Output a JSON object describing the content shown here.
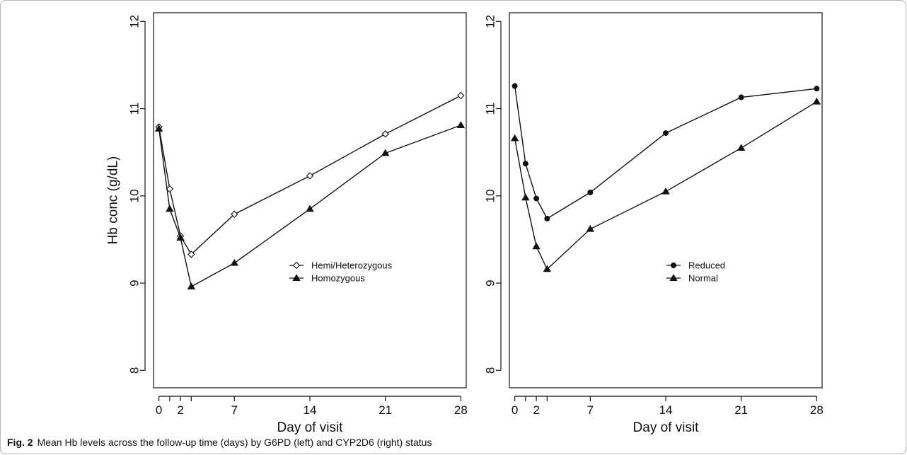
{
  "colors": {
    "stroke": "#111111",
    "background": "#ffffff",
    "frame": "#b4b4b4"
  },
  "caption": {
    "label": "Fig. 2",
    "text": "Mean Hb levels across the follow-up time (days) by G6PD (left) and CYP2D6 (right) status"
  },
  "chart_data": [
    {
      "type": "line",
      "title": "",
      "xlabel": "Day of visit",
      "ylabel": "Hb conc (g/dL)",
      "xlim": [
        -0.5,
        28.5
      ],
      "ylim": [
        7.8,
        12.1
      ],
      "xticks": [
        0,
        2,
        7,
        14,
        21,
        28
      ],
      "xticks_unlabeled": [
        1,
        3
      ],
      "yticks": [
        8,
        9,
        10,
        11,
        12
      ],
      "grid": false,
      "legend_position": "right-middle",
      "series": [
        {
          "name": "Hemi/Heterozygous",
          "marker": "open-diamond",
          "x": [
            0,
            1,
            2,
            3,
            7,
            14,
            21,
            28
          ],
          "y": [
            10.79,
            10.08,
            9.54,
            9.33,
            9.79,
            10.23,
            10.71,
            11.15
          ]
        },
        {
          "name": "Homozygous",
          "marker": "filled-triangle",
          "x": [
            0,
            1,
            2,
            3,
            7,
            14,
            21,
            28
          ],
          "y": [
            10.77,
            9.85,
            9.52,
            8.96,
            9.23,
            9.85,
            10.49,
            10.81
          ]
        }
      ]
    },
    {
      "type": "line",
      "title": "",
      "xlabel": "Day of visit",
      "ylabel": "",
      "xlim": [
        -0.5,
        28.5
      ],
      "ylim": [
        7.8,
        12.1
      ],
      "xticks": [
        0,
        2,
        7,
        14,
        21,
        28
      ],
      "xticks_unlabeled": [
        1,
        3
      ],
      "yticks": [
        8,
        9,
        10,
        11,
        12
      ],
      "grid": false,
      "legend_position": "right-middle",
      "series": [
        {
          "name": "Reduced",
          "marker": "filled-circle",
          "x": [
            0,
            1,
            2,
            3,
            7,
            14,
            21,
            28
          ],
          "y": [
            11.26,
            10.37,
            9.97,
            9.74,
            10.04,
            10.72,
            11.13,
            11.23
          ]
        },
        {
          "name": "Normal",
          "marker": "filled-triangle",
          "x": [
            0,
            1,
            2,
            3,
            7,
            14,
            21,
            28
          ],
          "y": [
            10.66,
            9.98,
            9.42,
            9.16,
            9.62,
            10.05,
            10.55,
            11.08
          ]
        }
      ]
    }
  ]
}
